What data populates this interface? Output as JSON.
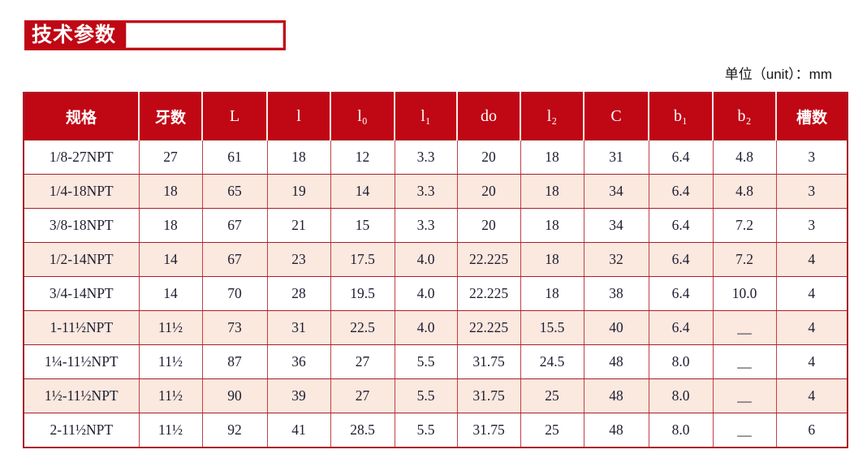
{
  "page": {
    "title": "技术参数",
    "unit_label": "单位（unit）：mm"
  },
  "colors": {
    "accent_red": "#c00714",
    "row_alt_pink": "#fbe8df",
    "border_dark_red": "#a81e29",
    "header_text": "#ffffff",
    "body_text": "#1d1d30"
  },
  "table": {
    "columns": [
      "规格",
      "牙数",
      "L",
      "l",
      "l₀",
      "l₁",
      "do",
      "l₂",
      "C",
      "b₁",
      "b₂",
      "槽数"
    ],
    "rows": [
      [
        "1/8-27NPT",
        "27",
        "61",
        "18",
        "12",
        "3.3",
        "20",
        "18",
        "31",
        "6.4",
        "4.8",
        "3"
      ],
      [
        "1/4-18NPT",
        "18",
        "65",
        "19",
        "14",
        "3.3",
        "20",
        "18",
        "34",
        "6.4",
        "4.8",
        "3"
      ],
      [
        "3/8-18NPT",
        "18",
        "67",
        "21",
        "15",
        "3.3",
        "20",
        "18",
        "34",
        "6.4",
        "7.2",
        "3"
      ],
      [
        "1/2-14NPT",
        "14",
        "67",
        "23",
        "17.5",
        "4.0",
        "22.225",
        "18",
        "32",
        "6.4",
        "7.2",
        "4"
      ],
      [
        "3/4-14NPT",
        "14",
        "70",
        "28",
        "19.5",
        "4.0",
        "22.225",
        "18",
        "38",
        "6.4",
        "10.0",
        "4"
      ],
      [
        "1-11½NPT",
        "11½",
        "73",
        "31",
        "22.5",
        "4.0",
        "22.225",
        "15.5",
        "40",
        "6.4",
        "__",
        "4"
      ],
      [
        "1¼-11½NPT",
        "11½",
        "87",
        "36",
        "27",
        "5.5",
        "31.75",
        "24.5",
        "48",
        "8.0",
        "__",
        "4"
      ],
      [
        "1½-11½NPT",
        "11½",
        "90",
        "39",
        "27",
        "5.5",
        "31.75",
        "25",
        "48",
        "8.0",
        "__",
        "4"
      ],
      [
        "2-11½NPT",
        "11½",
        "92",
        "41",
        "28.5",
        "5.5",
        "31.75",
        "25",
        "48",
        "8.0",
        "__",
        "6"
      ]
    ]
  }
}
